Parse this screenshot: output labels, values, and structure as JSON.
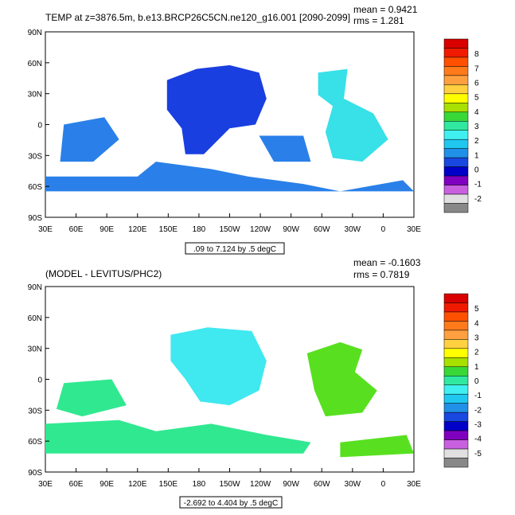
{
  "chart_data": [
    {
      "type": "heatmap",
      "title": "TEMP at z=3876.5m, b.e13.BRCP26C5CN.ne120_g16.001 [2090-2099]",
      "stats": {
        "mean_label": "mean = 0.9421",
        "rms_label": "rms = 1.281"
      },
      "range_note": ".09 to 7.124 by .5 degC",
      "x_ticks": [
        "30E",
        "60E",
        "90E",
        "120E",
        "150E",
        "180",
        "150W",
        "120W",
        "90W",
        "60W",
        "30W",
        "0",
        "30E"
      ],
      "y_ticks": [
        "90N",
        "60N",
        "30N",
        "0",
        "30S",
        "60S",
        "90S"
      ],
      "colorbar": {
        "labels": [
          "8",
          "7",
          "6",
          "5",
          "4",
          "3",
          "2",
          "1",
          "0",
          "-1",
          "-2"
        ],
        "colors": [
          "#d90000",
          "#f01a00",
          "#ff5000",
          "#ff7a1a",
          "#ffa040",
          "#ffd040",
          "#ffff00",
          "#a8e000",
          "#38d838",
          "#30e8a0",
          "#40f0f0",
          "#20c8f0",
          "#2090e8",
          "#1848e0",
          "#0000c8",
          "#8000c0",
          "#c860e0",
          "#e0e0e0",
          "#888888"
        ]
      },
      "regions": [
        {
          "name": "n-pacific",
          "color": "#1a3fe0"
        },
        {
          "name": "atlantic",
          "color": "#38e0e8"
        },
        {
          "name": "southern",
          "color": "#2a80e8"
        }
      ]
    },
    {
      "type": "heatmap",
      "title": "(MODEL - LEVITUS/PHC2)",
      "stats": {
        "mean_label": "mean = -0.1603",
        "rms_label": "rms = 0.7819"
      },
      "range_note": "-2.692 to 4.404 by .5 degC",
      "x_ticks": [
        "30E",
        "60E",
        "90E",
        "120E",
        "150E",
        "180",
        "150W",
        "120W",
        "90W",
        "60W",
        "30W",
        "0",
        "30E"
      ],
      "y_ticks": [
        "90N",
        "60N",
        "30N",
        "0",
        "30S",
        "60S",
        "90S"
      ],
      "colorbar": {
        "labels": [
          "5",
          "4",
          "3",
          "2",
          "1",
          "0",
          "-1",
          "-2",
          "-3",
          "-4",
          "-5"
        ],
        "colors": [
          "#d90000",
          "#f01a00",
          "#ff5000",
          "#ff7a1a",
          "#ffa040",
          "#ffd040",
          "#ffff00",
          "#a8e000",
          "#38d838",
          "#30e8a0",
          "#40f0f0",
          "#20c8f0",
          "#2090e8",
          "#1848e0",
          "#0000c8",
          "#8000c0",
          "#c860e0",
          "#e0e0e0",
          "#888888"
        ]
      },
      "regions": [
        {
          "name": "pacific",
          "color": "#40e8f0"
        },
        {
          "name": "atlantic",
          "color": "#58e020"
        },
        {
          "name": "southern",
          "color": "#30e890"
        }
      ]
    }
  ]
}
